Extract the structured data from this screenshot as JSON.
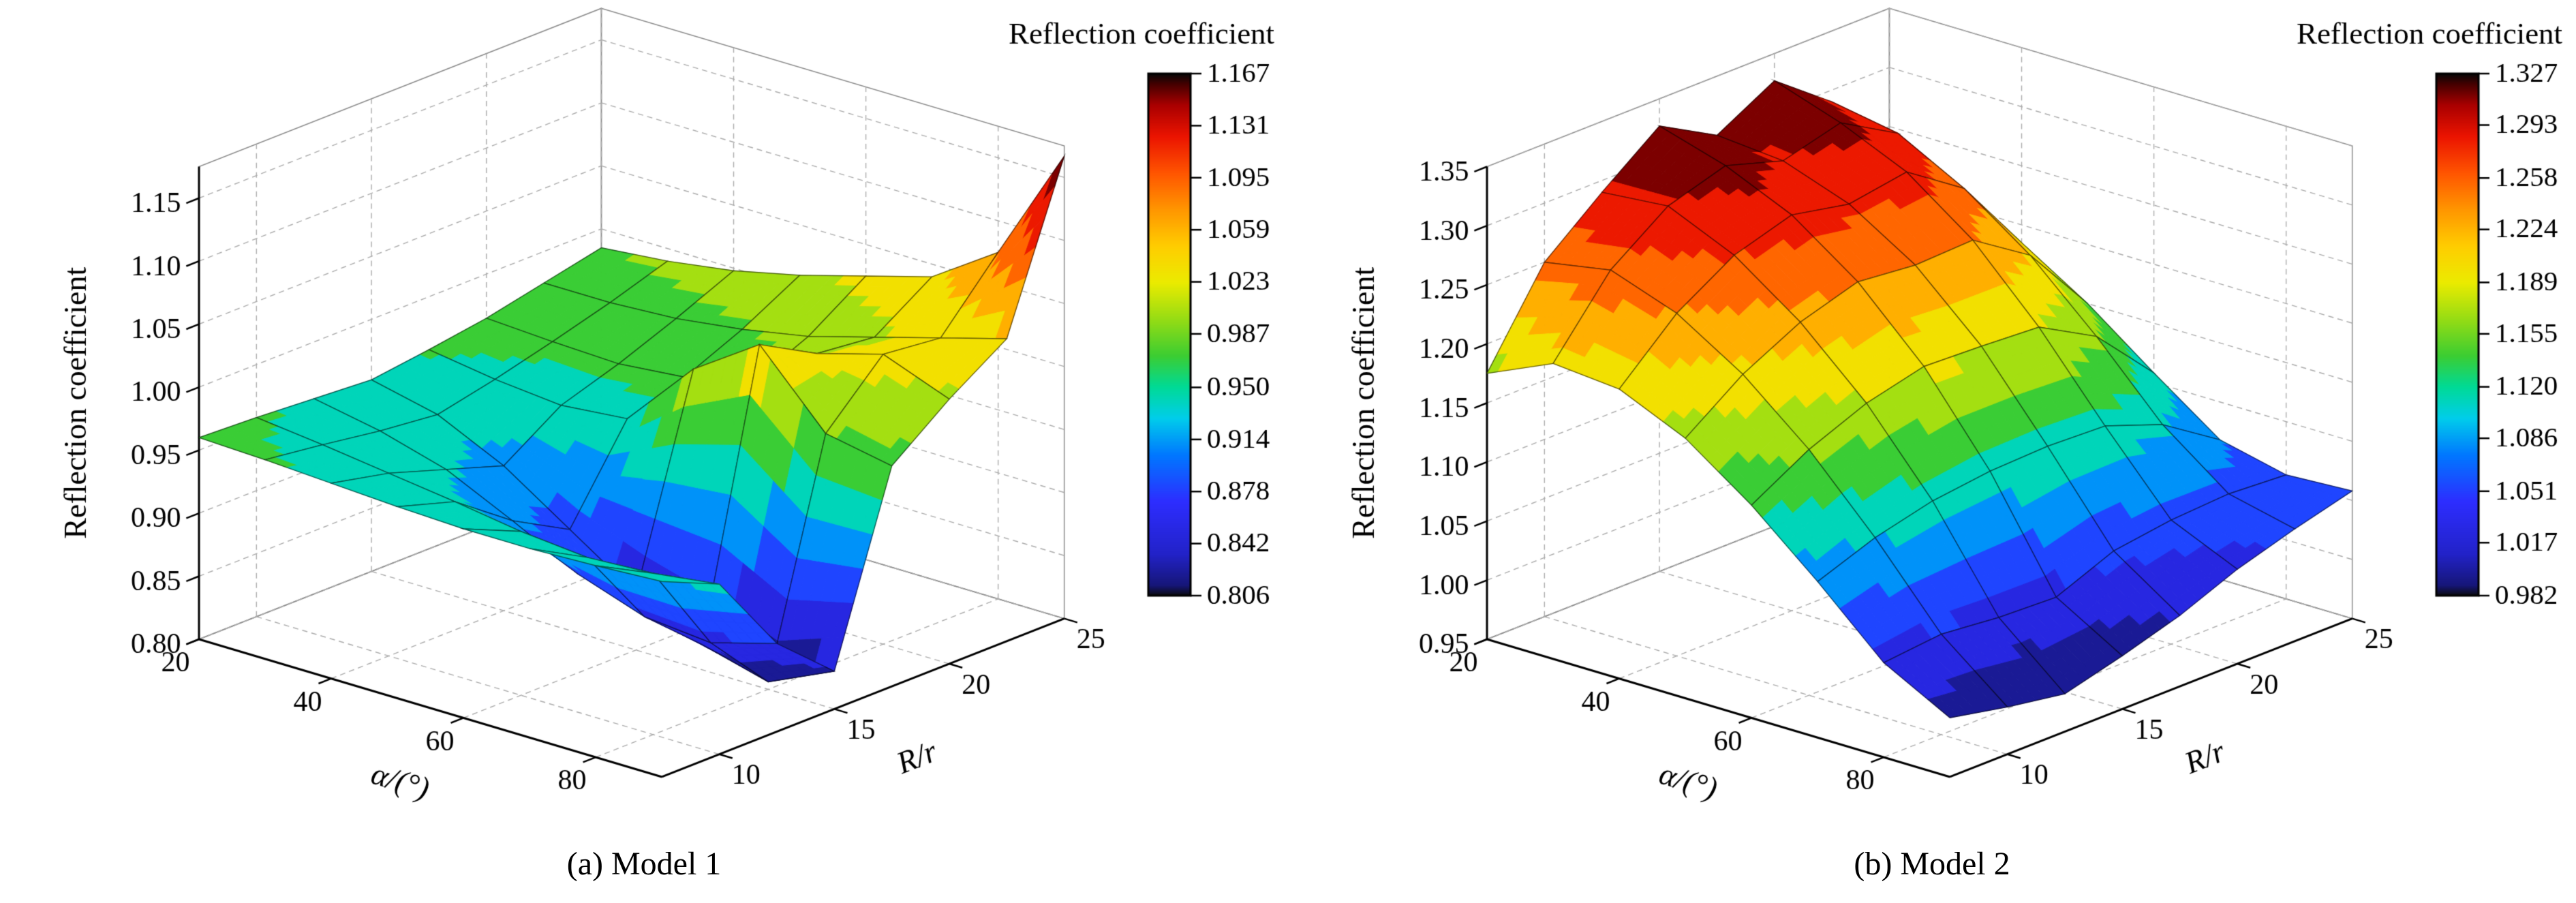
{
  "figure": {
    "background": "#ffffff",
    "text_color": "#000000"
  },
  "chart_data": [
    {
      "type": "surface3d",
      "caption": "(a) Model 1",
      "xlabel": "α/(°)",
      "ylabel": "R/r",
      "zlabel": "Reflection coefficient",
      "colorbar_title": "Reflection coefficient",
      "x": [
        20,
        30,
        40,
        50,
        60,
        70,
        80,
        90
      ],
      "y": [
        7.5,
        10,
        12.5,
        15,
        17.5,
        20,
        22.5,
        25
      ],
      "xlim": [
        20,
        90
      ],
      "ylim": [
        7.5,
        25
      ],
      "zlim": [
        0.8,
        1.175
      ],
      "clim": [
        0.806,
        1.167
      ],
      "x_ticks": [
        20,
        40,
        60,
        80
      ],
      "x_tick_labels": [
        "20",
        "40",
        "60",
        "80"
      ],
      "y_ticks": [
        10,
        15,
        20,
        25
      ],
      "y_tick_labels": [
        "10",
        "15",
        "20",
        "25"
      ],
      "z_ticks": [
        0.8,
        0.85,
        0.9,
        0.95,
        1.0,
        1.05,
        1.1,
        1.15
      ],
      "z_tick_labels": [
        "0.80",
        "0.85",
        "0.90",
        "0.95",
        "1.00",
        "1.05",
        "1.10",
        "1.15"
      ],
      "colorbar_ticks": [
        1.167,
        1.131,
        1.095,
        1.059,
        1.023,
        0.987,
        0.95,
        0.914,
        0.878,
        0.842,
        0.806
      ],
      "colorbar_tick_labels": [
        "1.167",
        "1.131",
        "1.095",
        "1.059",
        "1.023",
        "0.987",
        "0.950",
        "0.914",
        "0.878",
        "0.842",
        "0.806"
      ],
      "z": [
        [
          0.96,
          0.958,
          0.955,
          0.952,
          0.958,
          0.965,
          0.975,
          0.985
        ],
        [
          0.958,
          0.952,
          0.945,
          0.94,
          0.95,
          0.962,
          0.975,
          0.99
        ],
        [
          0.955,
          0.945,
          0.93,
          0.915,
          0.945,
          0.96,
          0.978,
          0.998
        ],
        [
          0.952,
          0.938,
          0.905,
          0.88,
          0.95,
          0.965,
          0.985,
          1.01
        ],
        [
          0.95,
          0.93,
          0.878,
          0.845,
          1.005,
          0.975,
          0.995,
          1.025
        ],
        [
          0.95,
          0.925,
          0.86,
          0.82,
          1.04,
          1.015,
          1.01,
          1.04
        ],
        [
          0.952,
          0.928,
          0.855,
          0.806,
          0.985,
          1.03,
          1.025,
          1.075
        ],
        [
          0.955,
          0.935,
          0.87,
          0.83,
          0.975,
          1.01,
          1.04,
          1.167
        ]
      ]
    },
    {
      "type": "surface3d",
      "caption": "(b) Model 2",
      "xlabel": "α/(°)",
      "ylabel": "R/r",
      "zlabel": "Reflection coefficient",
      "colorbar_title": "Reflection coefficient",
      "x": [
        20,
        30,
        40,
        50,
        60,
        70,
        80,
        90
      ],
      "y": [
        7.5,
        10,
        12.5,
        15,
        17.5,
        20,
        22.5,
        25
      ],
      "xlim": [
        20,
        90
      ],
      "ylim": [
        7.5,
        25
      ],
      "zlim": [
        0.95,
        1.35
      ],
      "clim": [
        0.982,
        1.327
      ],
      "x_ticks": [
        20,
        40,
        60,
        80
      ],
      "x_tick_labels": [
        "20",
        "40",
        "60",
        "80"
      ],
      "y_ticks": [
        10,
        15,
        20,
        25
      ],
      "y_tick_labels": [
        "10",
        "15",
        "20",
        "25"
      ],
      "z_ticks": [
        0.95,
        1.0,
        1.05,
        1.1,
        1.15,
        1.2,
        1.25,
        1.3,
        1.35
      ],
      "z_tick_labels": [
        "0.95",
        "1.00",
        "1.05",
        "1.10",
        "1.15",
        "1.20",
        "1.25",
        "1.30",
        "1.35"
      ],
      "colorbar_ticks": [
        1.327,
        1.293,
        1.258,
        1.224,
        1.189,
        1.155,
        1.12,
        1.086,
        1.051,
        1.017,
        0.982
      ],
      "colorbar_tick_labels": [
        "1.327",
        "1.293",
        "1.258",
        "1.224",
        "1.189",
        "1.155",
        "1.120",
        "1.086",
        "1.051",
        "1.017",
        "0.982"
      ],
      "z": [
        [
          1.175,
          1.25,
          1.29,
          1.327,
          1.3,
          1.327,
          1.29,
          1.23
        ],
        [
          1.2,
          1.26,
          1.295,
          1.31,
          1.295,
          1.308,
          1.28,
          1.215
        ],
        [
          1.195,
          1.24,
          1.27,
          1.285,
          1.275,
          1.283,
          1.25,
          1.185
        ],
        [
          1.17,
          1.205,
          1.23,
          1.245,
          1.24,
          1.242,
          1.21,
          1.15
        ],
        [
          1.13,
          1.158,
          1.178,
          1.19,
          1.188,
          1.185,
          1.158,
          1.108
        ],
        [
          1.082,
          1.1,
          1.112,
          1.118,
          1.12,
          1.118,
          1.1,
          1.068
        ],
        [
          1.03,
          1.035,
          1.03,
          1.028,
          1.048,
          1.055,
          1.058,
          1.055
        ],
        [
          1.0,
          0.99,
          0.982,
          0.995,
          1.01,
          1.03,
          1.045,
          1.058
        ]
      ]
    }
  ]
}
